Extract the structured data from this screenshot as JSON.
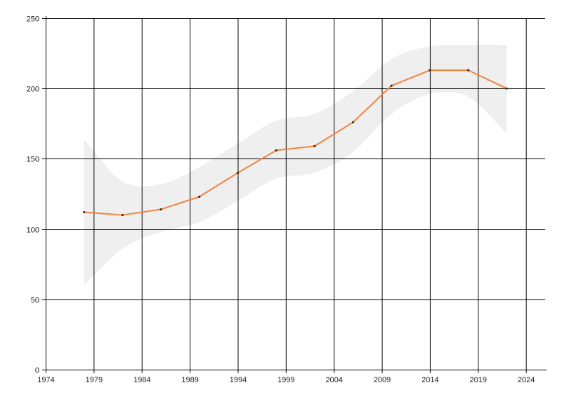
{
  "chart_data": {
    "type": "line",
    "title": "",
    "xlabel": "",
    "ylabel": "",
    "x": [
      1978,
      1982,
      1986,
      1990,
      1994,
      1998,
      2002,
      2006,
      2010,
      2014,
      2018,
      2022
    ],
    "series": [
      {
        "values": [
          112,
          110,
          114,
          123,
          140,
          156,
          159,
          176,
          202,
          213,
          213,
          200
        ],
        "band_upper": [
          164,
          134,
          132,
          144,
          161,
          177,
          182,
          198,
          221,
          230,
          231,
          231
        ],
        "band_lower": [
          60,
          86,
          98,
          105,
          120,
          136,
          140,
          155,
          182,
          196,
          194,
          168
        ]
      }
    ],
    "xlim": [
      1974,
      2026
    ],
    "ylim": [
      0,
      250
    ],
    "x_ticks": [
      1974,
      1979,
      1984,
      1989,
      1994,
      1999,
      2004,
      2009,
      2014,
      2019,
      2024
    ],
    "y_ticks": [
      0,
      50,
      100,
      150,
      200,
      250
    ],
    "grid": true,
    "legend": "none",
    "colors": {
      "line": "#f5823c",
      "marker": "#3a2a1a",
      "band": "#efefef",
      "grid": "#000000",
      "axis": "#000000",
      "tick_text": "#222222"
    }
  }
}
